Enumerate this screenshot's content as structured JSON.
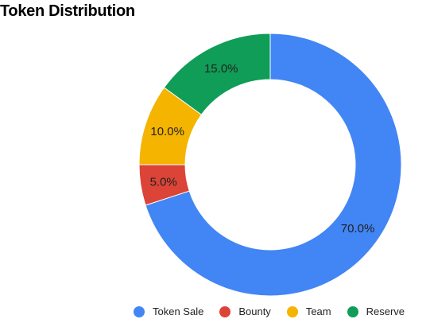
{
  "chart_data": {
    "type": "pie",
    "title": "Token Distribution",
    "donut": true,
    "categories": [
      "Token Sale",
      "Bounty",
      "Team",
      "Reserve"
    ],
    "values": [
      70.0,
      5.0,
      10.0,
      15.0
    ],
    "value_labels": [
      "70.0%",
      "5.0%",
      "10.0%",
      "15.0%"
    ],
    "colors": [
      "#4285F4",
      "#DB4437",
      "#F4B400",
      "#0F9D58"
    ],
    "legend_position": "bottom",
    "start_angle_deg": 0,
    "direction": "clockwise"
  }
}
